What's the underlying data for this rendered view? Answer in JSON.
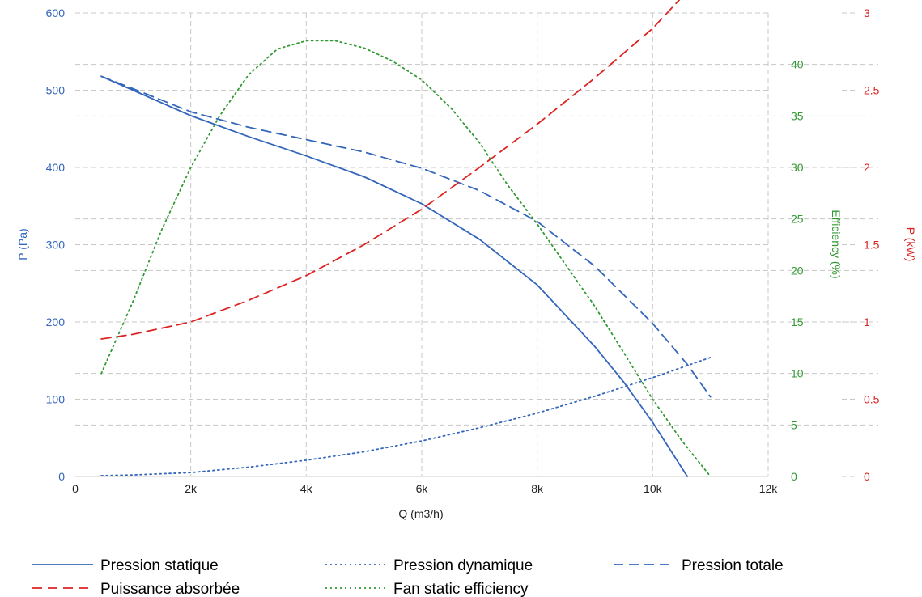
{
  "chart_data": {
    "type": "line",
    "grid": true,
    "legend_position": "bottom",
    "x_axis": {
      "label": "Q (m3/h)",
      "range": [
        0,
        12000
      ],
      "ticks": [
        0,
        2000,
        4000,
        6000,
        8000,
        10000,
        12000
      ],
      "tick_labels": [
        "0",
        "2k",
        "4k",
        "6k",
        "8k",
        "10k",
        "12k"
      ]
    },
    "y_axes": {
      "pressure": {
        "label": "P (Pa)",
        "color": "#3366bb",
        "range": [
          0,
          600
        ],
        "ticks": [
          0,
          100,
          200,
          300,
          400,
          500,
          600
        ],
        "tick_labels": [
          "0",
          "100",
          "200",
          "300",
          "400",
          "500",
          "600"
        ]
      },
      "efficiency": {
        "label": "Efficiency (%)",
        "color": "#339933",
        "range": [
          0,
          45
        ],
        "ticks": [
          0,
          5,
          10,
          15,
          20,
          25,
          30,
          35,
          40
        ],
        "tick_labels": [
          "0",
          "5",
          "10",
          "15",
          "20",
          "25",
          "30",
          "35",
          "40"
        ]
      },
      "power": {
        "label": "P (kW)",
        "color": "#dd2222",
        "range": [
          0,
          3
        ],
        "ticks": [
          0,
          0.5,
          1,
          1.5,
          2,
          2.5,
          3
        ],
        "tick_labels": [
          "0",
          "0.5",
          "1",
          "1.5",
          "2",
          "2.5",
          "3"
        ]
      }
    },
    "series": [
      {
        "name": "Pression statique",
        "axis": "pressure",
        "color": "#3366bb",
        "style": "solid",
        "x": [
          450,
          1000,
          2000,
          3000,
          4000,
          5000,
          6000,
          7000,
          8000,
          9000,
          9500,
          10000,
          10600
        ],
        "y": [
          518,
          500,
          467,
          440,
          415,
          388,
          353,
          307,
          248,
          168,
          122,
          70,
          0
        ]
      },
      {
        "name": "Pression dynamique",
        "axis": "pressure",
        "color": "#3366bb",
        "style": "dotted",
        "x": [
          450,
          1000,
          2000,
          3000,
          4000,
          5000,
          6000,
          7000,
          8000,
          9000,
          10000,
          11000
        ],
        "y": [
          1,
          2,
          5,
          12,
          21,
          32,
          46,
          63,
          82,
          104,
          128,
          154
        ]
      },
      {
        "name": "Pression totale",
        "axis": "pressure",
        "color": "#3366bb",
        "style": "dashed",
        "x": [
          450,
          1000,
          2000,
          3000,
          4000,
          5000,
          6000,
          7000,
          8000,
          9000,
          10000,
          10600,
          11000
        ],
        "y": [
          518,
          502,
          472,
          452,
          436,
          420,
          399,
          370,
          330,
          272,
          198,
          145,
          103
        ]
      },
      {
        "name": "Puissance absorbée",
        "axis": "power",
        "color": "#dd2222",
        "style": "dashed",
        "x": [
          450,
          1000,
          2000,
          3000,
          4000,
          5000,
          6000,
          7000,
          8000,
          9000,
          10000,
          11000
        ],
        "y": [
          0.89,
          0.92,
          1.0,
          1.14,
          1.3,
          1.5,
          1.73,
          2.0,
          2.28,
          2.58,
          2.9,
          3.3
        ]
      },
      {
        "name": "Fan static efficiency",
        "axis": "efficiency",
        "color": "#339933",
        "style": "dotted",
        "x": [
          450,
          1000,
          1500,
          2000,
          2500,
          3000,
          3500,
          4000,
          4500,
          5000,
          5500,
          6000,
          6500,
          7000,
          7500,
          8000,
          8500,
          9000,
          9500,
          10000,
          10500,
          11000
        ],
        "y": [
          10,
          17,
          24,
          30,
          35,
          39,
          41.5,
          42.3,
          42.3,
          41.6,
          40.3,
          38.5,
          35.8,
          32.4,
          28.2,
          24.5,
          20.5,
          16.5,
          12,
          7.5,
          3.5,
          0
        ]
      }
    ]
  }
}
